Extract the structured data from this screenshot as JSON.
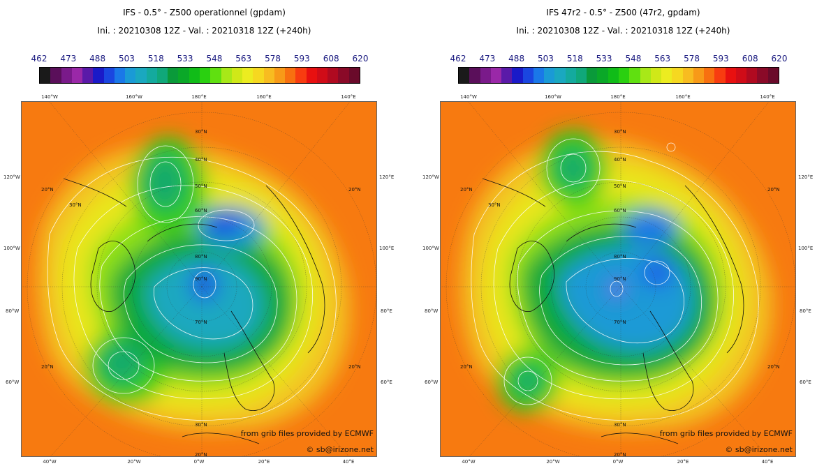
{
  "colorbar": {
    "labels": [
      "462",
      "473",
      "488",
      "503",
      "518",
      "533",
      "548",
      "563",
      "578",
      "593",
      "608",
      "620"
    ],
    "colors": [
      "#1a1a1a",
      "#5a0f5a",
      "#7a1a8a",
      "#9a28a8",
      "#5a1aa8",
      "#1a1ac8",
      "#1a46e0",
      "#1a78e8",
      "#1a9ad6",
      "#1aa8c0",
      "#14aa9e",
      "#10a87a",
      "#0a9a3a",
      "#0aa828",
      "#10bc18",
      "#2ad010",
      "#60e010",
      "#a8e818",
      "#d0e818",
      "#ecec20",
      "#f6d820",
      "#f8bc20",
      "#f89a18",
      "#f87010",
      "#f83c10",
      "#e81010",
      "#d00c18",
      "#b00a20",
      "#8a0a28",
      "#6a0a2a"
    ]
  },
  "maps": [
    {
      "title": "IFS - 0.5° - Z500 operationnel (gpdam)",
      "subtitle": "Ini. : 20210308 12Z - Val. : 20210318 12Z (+240h)",
      "credit_source": "from grib files provided by ECMWF",
      "credit_author": "© sb@irizone.net",
      "lat_labels": [
        "20°N",
        "30°N",
        "40°N",
        "50°N",
        "60°N",
        "70°N",
        "80°N",
        "90°N"
      ],
      "lon_labels_top": [
        "140°W",
        "160°W",
        "180°E",
        "160°E",
        "140°E"
      ],
      "lon_labels_bottom": [
        "40°W",
        "20°W",
        "0°W",
        "20°E",
        "40°E"
      ],
      "lon_labels_left": [
        "120°W",
        "100°W",
        "80°W",
        "60°W"
      ],
      "lon_labels_right": [
        "120°E",
        "100°E",
        "80°E",
        "60°E"
      ]
    },
    {
      "title": "IFS 47r2 - 0.5° - Z500 (47r2, gpdam)",
      "subtitle": "Ini. : 20210308 12Z - Val. : 20210318 12Z (+240h)",
      "credit_source": "from grib files provided by ECMWF",
      "credit_author": "© sb@irizone.net",
      "lat_labels": [
        "20°N",
        "30°N",
        "40°N",
        "50°N",
        "60°N",
        "70°N",
        "80°N",
        "90°N"
      ],
      "lon_labels_top": [
        "140°W",
        "160°W",
        "180°E",
        "160°E",
        "140°E"
      ],
      "lon_labels_bottom": [
        "40°W",
        "20°W",
        "0°W",
        "20°E",
        "40°E"
      ],
      "lon_labels_left": [
        "120°W",
        "100°W",
        "80°W",
        "60°W"
      ],
      "lon_labels_right": [
        "120°E",
        "100°E",
        "80°E",
        "60°E"
      ]
    }
  ]
}
